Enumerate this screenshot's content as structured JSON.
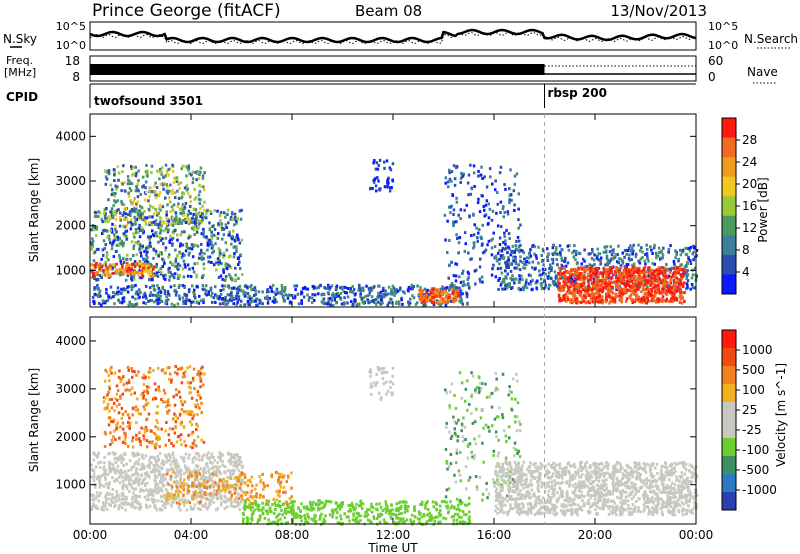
{
  "header": {
    "station": "Prince George (fitACF)",
    "beam": "Beam 08",
    "date": "13/Nov/2013"
  },
  "left_labels": {
    "nsky": "N.Sky",
    "freq_line1": "Freq.",
    "freq_line2": "[MHz]",
    "cpid": "CPID"
  },
  "right_labels": {
    "nsearch": "N.Search",
    "nave": "Nave"
  },
  "noise_panel": {
    "left_ticks": [
      "10^5",
      "10^0"
    ],
    "right_ticks": [
      "10^5",
      "10^0"
    ]
  },
  "freq_panel": {
    "left_ticks": [
      "18",
      "8"
    ],
    "right_ticks": [
      "60",
      "0"
    ]
  },
  "cpid_panel": {
    "mode1": "twofsound 3501",
    "mode2": "rbsp 200",
    "switch_hour": 18
  },
  "chart_data": [
    {
      "type": "heatmap",
      "parameter": "Power",
      "colorbar_label": "Power [dB]",
      "ylabel": "Slant Range [km]",
      "xlabel": "",
      "xlim": [
        0,
        24
      ],
      "ylim": [
        180,
        4500
      ],
      "yticks": [
        "1000",
        "2000",
        "3000",
        "4000"
      ],
      "colorbar_ticks": [
        "4",
        "8",
        "12",
        "16",
        "20",
        "24",
        "28"
      ],
      "colorscale": [
        "#0a1aff",
        "#2a4fb0",
        "#3c7f9a",
        "#4a9a60",
        "#9ac836",
        "#f0c820",
        "#f09a20",
        "#f06a20",
        "#ff1a10"
      ]
    },
    {
      "type": "heatmap",
      "parameter": "Velocity",
      "colorbar_label": "Velocity [m s^-1]",
      "ylabel": "Slant Range [km]",
      "xlabel": "Time UT",
      "xlim": [
        0,
        24
      ],
      "ylim": [
        180,
        4500
      ],
      "yticks": [
        "1000",
        "2000",
        "3000",
        "4000"
      ],
      "xticks": [
        "00:00",
        "04:00",
        "08:00",
        "12:00",
        "16:00",
        "20:00",
        "00:00"
      ],
      "colorbar_ticks": [
        "1000",
        "500",
        "100",
        "25",
        "-25",
        "-100",
        "-500",
        "-1000"
      ],
      "colorscale": [
        "#2a40b0",
        "#2a7abf",
        "#3e9060",
        "#6ccf30",
        "#c8c8c0",
        "#c8c8c0",
        "#f0b020",
        "#f08020",
        "#f04a10",
        "#ff1a10"
      ]
    }
  ]
}
